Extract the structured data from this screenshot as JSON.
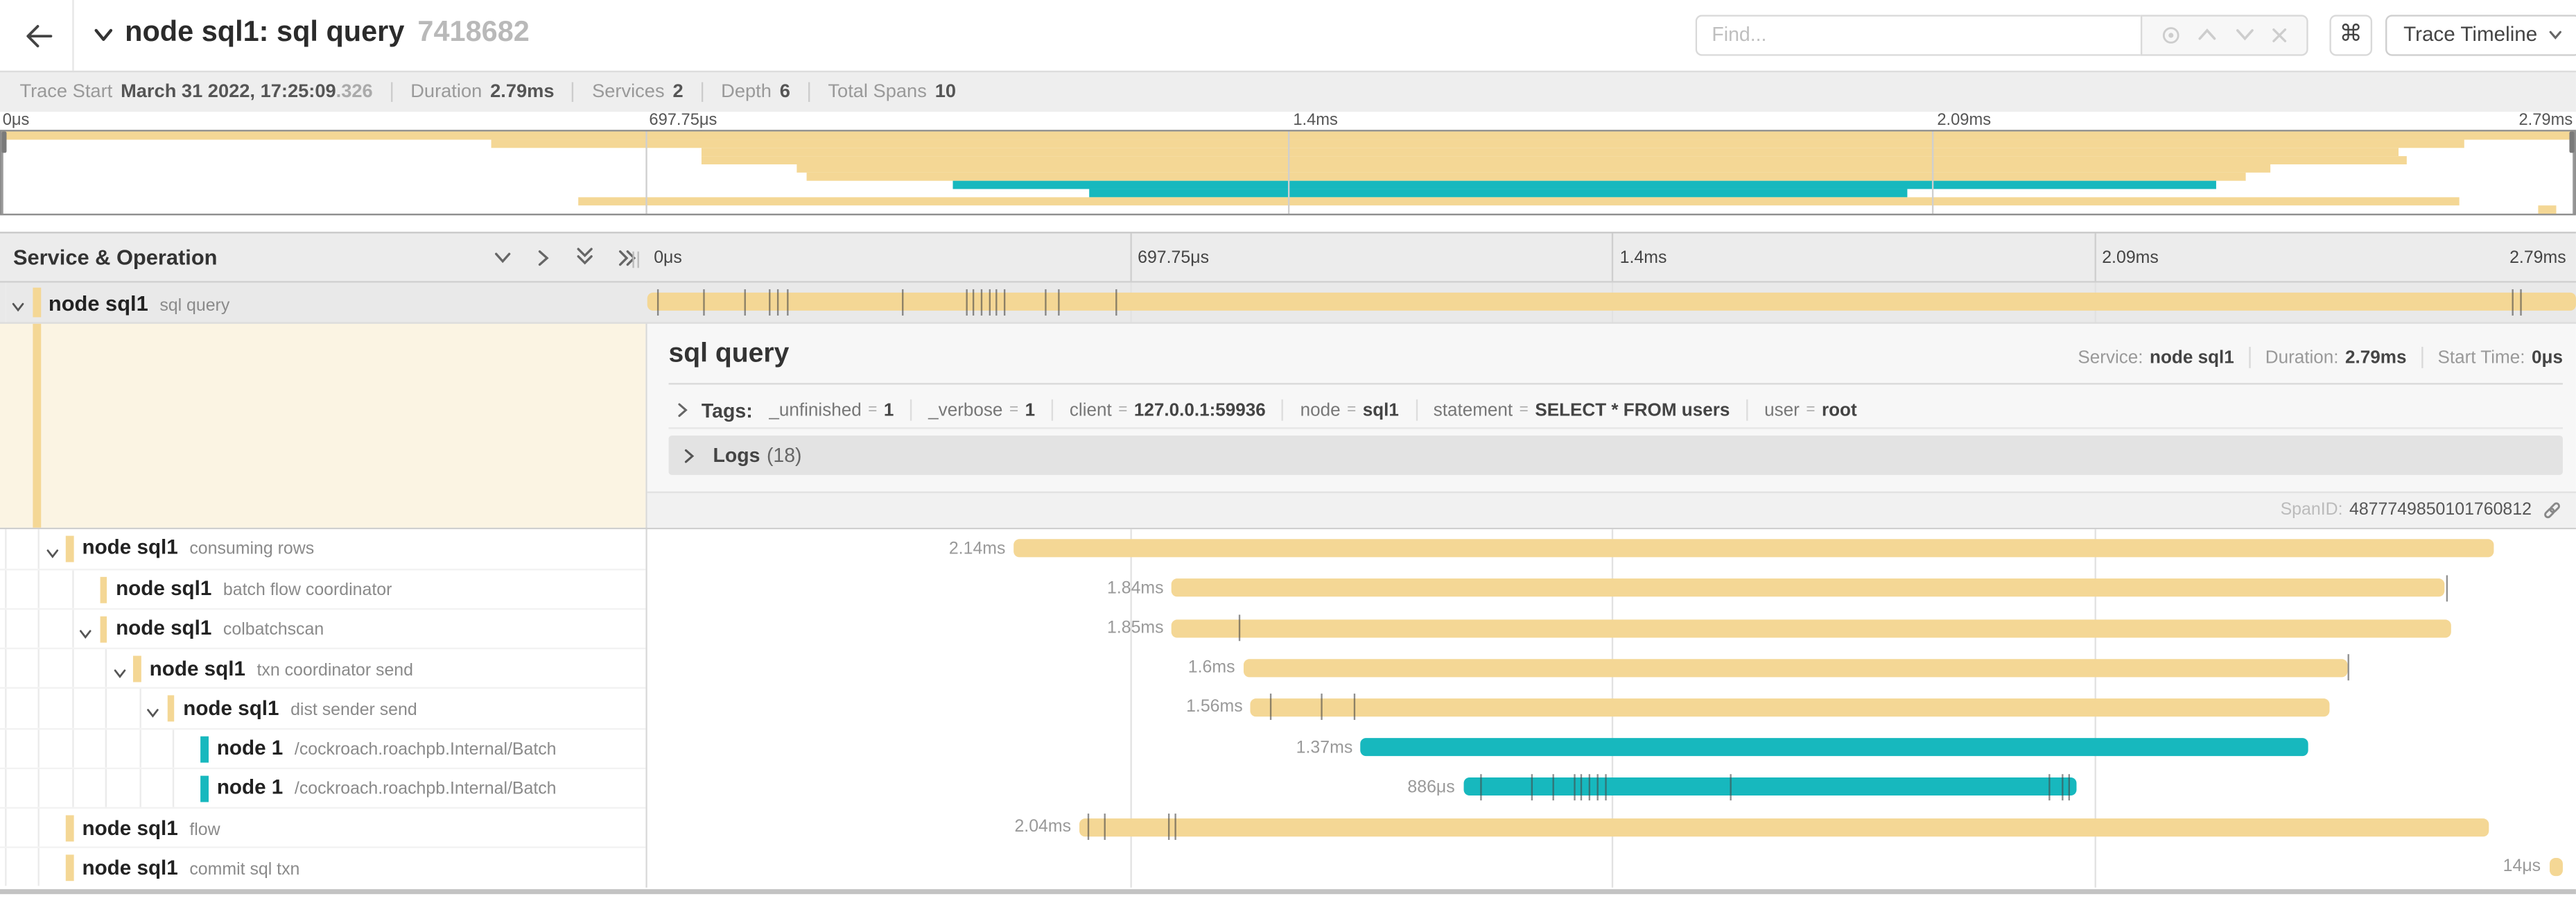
{
  "colors": {
    "tan": "#F4D795",
    "teal": "#17B8BE",
    "cream_bg": "#FBF4E3",
    "selected_row_bg": "#E9E9E9"
  },
  "header": {
    "title": "node sql1: sql query",
    "trace_id": "7418682",
    "find_placeholder": "Find...",
    "shortcut_key": "⌘",
    "view_selector": "Trace Timeline"
  },
  "summary": {
    "items": [
      {
        "label": "Trace Start",
        "value": "March 31 2022, 17:25:09",
        "muted_suffix": ".326"
      },
      {
        "label": "Duration",
        "value": "2.79ms"
      },
      {
        "label": "Services",
        "value": "2"
      },
      {
        "label": "Depth",
        "value": "6"
      },
      {
        "label": "Total Spans",
        "value": "10"
      }
    ]
  },
  "axis": {
    "ticks": [
      "0μs",
      "697.75μs",
      "1.4ms",
      "2.09ms",
      "2.79ms"
    ]
  },
  "tree": {
    "header": "Service & Operation"
  },
  "spans": [
    {
      "service": "node sql1",
      "operation": "sql query",
      "level": 0,
      "color": "tan",
      "start_pct": 0,
      "width_pct": 100,
      "duration_label": "",
      "has_children": true,
      "selected": true,
      "ticks": [
        0.5,
        2.9,
        5.0,
        6.3,
        6.7,
        7.2,
        13.2,
        16.5,
        16.9,
        17.3,
        17.7,
        18.1,
        18.5,
        20.6,
        21.3,
        24.3,
        96.7,
        97.1
      ]
    },
    {
      "service": "node sql1",
      "operation": "consuming rows",
      "level": 1,
      "color": "tan",
      "start_pct": 19.0,
      "width_pct": 76.7,
      "duration_label": "2.14ms",
      "has_children": true,
      "ticks": []
    },
    {
      "service": "node sql1",
      "operation": "batch flow coordinator",
      "level": 2,
      "color": "tan",
      "start_pct": 27.2,
      "width_pct": 66.0,
      "duration_label": "1.84ms",
      "has_children": false,
      "ticks": [
        93.3
      ]
    },
    {
      "service": "node sql1",
      "operation": "colbatchscan",
      "level": 2,
      "color": "tan",
      "start_pct": 27.2,
      "width_pct": 66.3,
      "duration_label": "1.85ms",
      "has_children": true,
      "ticks": [
        30.7
      ]
    },
    {
      "service": "node sql1",
      "operation": "txn coordinator send",
      "level": 3,
      "color": "tan",
      "start_pct": 30.9,
      "width_pct": 57.3,
      "duration_label": "1.6ms",
      "has_children": true,
      "ticks": [
        88.2
      ]
    },
    {
      "service": "node sql1",
      "operation": "dist sender send",
      "level": 4,
      "color": "tan",
      "start_pct": 31.3,
      "width_pct": 55.9,
      "duration_label": "1.56ms",
      "has_children": true,
      "ticks": [
        32.3,
        34.9,
        36.6
      ]
    },
    {
      "service": "node 1",
      "operation": "/cockroach.roachpb.Internal/Batch",
      "level": 5,
      "color": "teal",
      "start_pct": 37.0,
      "width_pct": 49.1,
      "duration_label": "1.37ms",
      "has_children": false,
      "ticks": []
    },
    {
      "service": "node 1",
      "operation": "/cockroach.roachpb.Internal/Batch",
      "level": 5,
      "color": "teal",
      "start_pct": 42.3,
      "width_pct": 31.8,
      "duration_label": "886μs",
      "has_children": false,
      "ticks": [
        43.2,
        45.8,
        46.9,
        48.0,
        48.4,
        48.8,
        49.2,
        49.7,
        56.1,
        72.7,
        73.3,
        73.7
      ]
    },
    {
      "service": "node sql1",
      "operation": "flow",
      "level": 1,
      "color": "tan",
      "start_pct": 22.4,
      "width_pct": 73.1,
      "duration_label": "2.04ms",
      "has_children": false,
      "ticks": [
        22.8,
        23.7,
        27.0,
        27.3
      ]
    },
    {
      "service": "node sql1",
      "operation": "commit sql txn",
      "level": 1,
      "color": "tan",
      "start_pct": 98.6,
      "width_pct": 0.7,
      "duration_label": "14μs",
      "has_children": false,
      "ticks": []
    }
  ],
  "detail": {
    "title": "sql query",
    "meta": [
      {
        "label": "Service:",
        "value": "node sql1"
      },
      {
        "label": "Duration:",
        "value": "2.79ms"
      },
      {
        "label": "Start Time:",
        "value": "0μs"
      }
    ],
    "tags_label": "Tags:",
    "tags": [
      {
        "key": "_unfinished",
        "value": "1"
      },
      {
        "key": "_verbose",
        "value": "1"
      },
      {
        "key": "client",
        "value": "127.0.0.1:59936"
      },
      {
        "key": "node",
        "value": "sql1"
      },
      {
        "key": "statement",
        "value": "SELECT * FROM users"
      },
      {
        "key": "user",
        "value": "root"
      }
    ],
    "logs_label": "Logs",
    "logs_count": "(18)",
    "span_id_label": "SpanID:",
    "span_id": "4877749850101760812"
  }
}
